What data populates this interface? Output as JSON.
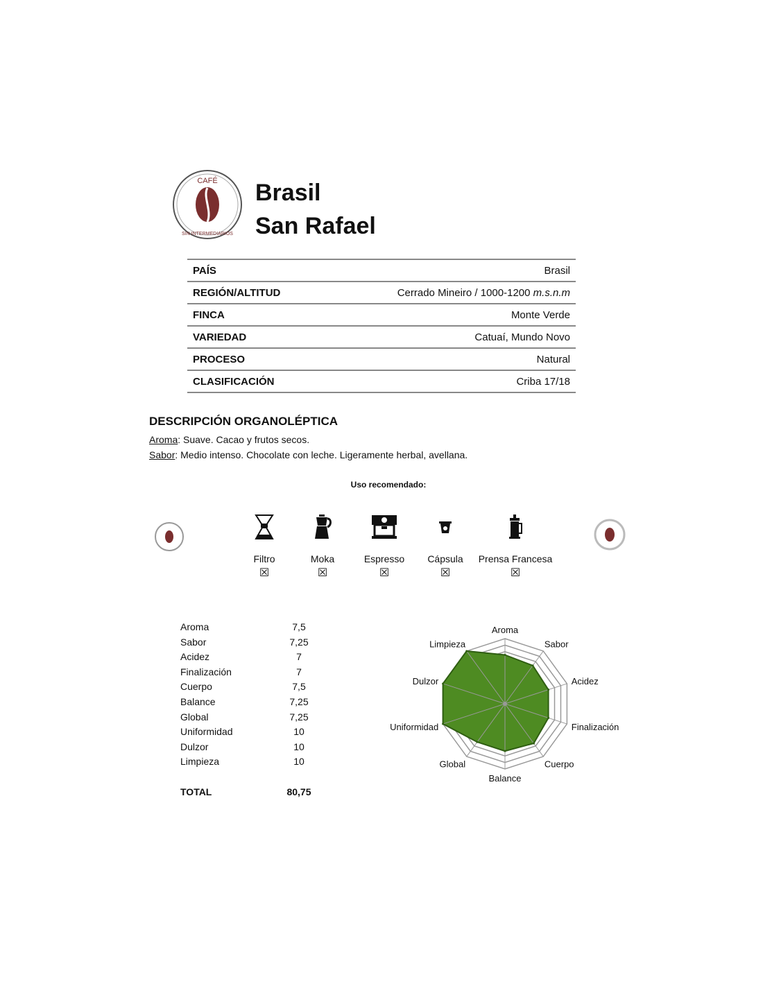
{
  "header": {
    "logo_text": "CAFÉ SIN INTERMEDIARIOS",
    "title_line1": "Brasil",
    "title_line2": "San Rafael"
  },
  "specs": [
    {
      "label": "PAÍS",
      "value": "Brasil",
      "value_italic": ""
    },
    {
      "label": "REGIÓN/ALTITUD",
      "value": "Cerrado Mineiro / 1000-1200 ",
      "value_italic": "m.s.n.m"
    },
    {
      "label": "FINCA",
      "value": "Monte Verde",
      "value_italic": ""
    },
    {
      "label": "VARIEDAD",
      "value": "Catuaí, Mundo Novo",
      "value_italic": ""
    },
    {
      "label": "PROCESO",
      "value": "Natural",
      "value_italic": ""
    },
    {
      "label": "CLASIFICACIÓN",
      "value": "Criba 17/18",
      "value_italic": ""
    }
  ],
  "description": {
    "heading": "DESCRIPCIÓN ORGANOLÉPTICA",
    "aroma_label": "Aroma",
    "aroma_text": ": Suave. Cacao y frutos secos.",
    "sabor_label": "Sabor",
    "sabor_text": ":   Medio intenso. Chocolate con leche. Ligeramente herbal, avellana."
  },
  "uso": {
    "heading": "Uso recomendado:",
    "methods": [
      {
        "label": "Filtro",
        "icon": "chemex-icon",
        "checked": "☒"
      },
      {
        "label": "Moka",
        "icon": "moka-pot-icon",
        "checked": "☒"
      },
      {
        "label": "Espresso",
        "icon": "espresso-machine-icon",
        "checked": "☒"
      },
      {
        "label": "Cápsula",
        "icon": "capsule-icon",
        "checked": "☒"
      },
      {
        "label": "Prensa Francesa",
        "icon": "french-press-icon",
        "checked": "☒"
      }
    ]
  },
  "scores": {
    "rows": [
      {
        "name": "Aroma",
        "value": "7,5"
      },
      {
        "name": "Sabor",
        "value": "7,25"
      },
      {
        "name": "Acidez",
        "value": "7"
      },
      {
        "name": "Finalización",
        "value": "7"
      },
      {
        "name": "Cuerpo",
        "value": "7,5"
      },
      {
        "name": "Balance",
        "value": "7,25"
      },
      {
        "name": "Global",
        "value": "7,25"
      },
      {
        "name": "Uniformidad",
        "value": "10"
      },
      {
        "name": "Dulzor",
        "value": "10"
      },
      {
        "name": "Limpieza",
        "value": "10"
      }
    ],
    "total_label": "TOTAL",
    "total_value": "80,75"
  },
  "chart_data": {
    "type": "radar",
    "categories": [
      "Aroma",
      "Sabor",
      "Acidez",
      "Finalización",
      "Cuerpo",
      "Balance",
      "Global",
      "Uniformidad",
      "Dulzor",
      "Limpieza"
    ],
    "values": [
      7.5,
      7.25,
      7,
      7,
      7.5,
      7.25,
      7.25,
      10,
      10,
      10
    ],
    "range": [
      0,
      10
    ],
    "fill_color": "#4e8b22",
    "grid_color": "#999999"
  }
}
